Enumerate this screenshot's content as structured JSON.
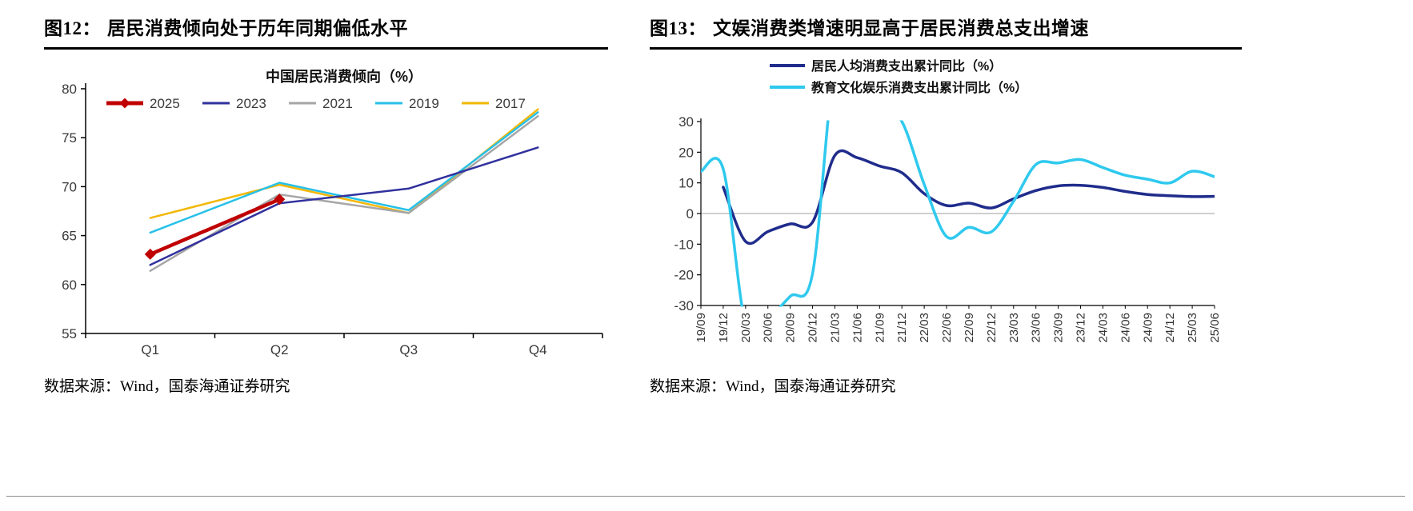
{
  "page": {
    "background": "#ffffff"
  },
  "figures": [
    {
      "label": "图12：",
      "title": "居民消费倾向处于历年同期偏低水平",
      "source": "数据来源：Wind，国泰海通证券研究"
    },
    {
      "label": "图13：",
      "title": "文娱消费类增速明显高于居民消费总支出增速",
      "source": "数据来源：Wind，国泰海通证券研究"
    }
  ],
  "chart_data": [
    {
      "type": "line",
      "title": "中国居民消费倾向（%）",
      "categories": [
        "Q1",
        "Q2",
        "Q3",
        "Q4"
      ],
      "ylim": [
        55,
        80
      ],
      "yticks": [
        55,
        60,
        65,
        70,
        75,
        80
      ],
      "grid": false,
      "legend_position": "top",
      "series": [
        {
          "name": "2025",
          "color": "#c00000",
          "width": 4.5,
          "marker": "diamond",
          "values": [
            63.1,
            68.7,
            null,
            null
          ]
        },
        {
          "name": "2023",
          "color": "#31319e",
          "width": 2.5,
          "values": [
            62.0,
            68.3,
            69.8,
            74.0
          ]
        },
        {
          "name": "2021",
          "color": "#a6a6a6",
          "width": 2.5,
          "values": [
            61.4,
            69.2,
            67.3,
            77.2
          ]
        },
        {
          "name": "2019",
          "color": "#27c0e8",
          "width": 2.5,
          "values": [
            65.3,
            70.4,
            67.6,
            77.6
          ]
        },
        {
          "name": "2017",
          "color": "#f2b705",
          "width": 2.5,
          "values": [
            66.8,
            70.2,
            67.3,
            77.9
          ]
        }
      ]
    },
    {
      "type": "line",
      "title": "",
      "x": [
        "19/09",
        "19/12",
        "20/03",
        "20/06",
        "20/09",
        "20/12",
        "21/03",
        "21/06",
        "21/09",
        "21/12",
        "22/03",
        "22/06",
        "22/09",
        "22/12",
        "23/03",
        "23/06",
        "23/09",
        "23/12",
        "24/03",
        "24/06",
        "24/09",
        "24/12",
        "25/03",
        "25/06"
      ],
      "ylim": [
        -30,
        30
      ],
      "yticks": [
        -30,
        -20,
        -10,
        0,
        10,
        20,
        30
      ],
      "zero_line": true,
      "grid": false,
      "legend_position": "top",
      "series": [
        {
          "name": "居民人均消费支出累计同比（%）",
          "color": "#1f2c8c",
          "width": 3.5,
          "values": [
            null,
            8.6,
            -9.1,
            -5.9,
            -3.4,
            -2.8,
            19.0,
            18.2,
            15.5,
            13.3,
            6.5,
            2.6,
            3.4,
            1.8,
            4.8,
            7.5,
            9.0,
            9.2,
            8.5,
            7.2,
            6.2,
            5.8,
            5.5,
            5.6
          ]
        },
        {
          "name": "教育文化娱乐消费支出累计同比（%）",
          "color": "#2fc9ee",
          "width": 3.5,
          "values": [
            13.8,
            14.5,
            -36,
            -34,
            -27,
            -19.5,
            48,
            42,
            36,
            30,
            9.5,
            -7.5,
            -4.5,
            -6.0,
            4.0,
            16.0,
            16.5,
            17.6,
            15.0,
            12.5,
            11.2,
            10.0,
            13.8,
            12.0
          ]
        }
      ]
    }
  ]
}
